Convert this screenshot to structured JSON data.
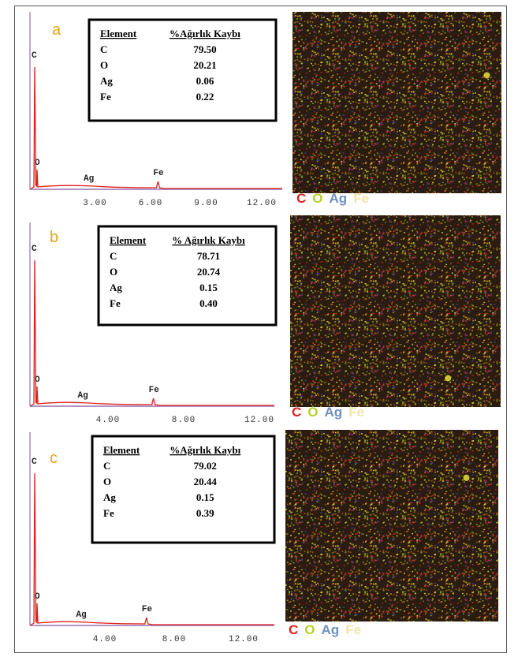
{
  "panels": [
    {
      "label": "a",
      "table": {
        "header": [
          "Element",
          "%Ağırlık Kaybı"
        ],
        "rows": [
          [
            "C",
            "79.50"
          ],
          [
            "O",
            "20.21"
          ],
          [
            "Ag",
            "0.06"
          ],
          [
            "Fe",
            "0.22"
          ]
        ]
      },
      "spectrum": {
        "peak_labels": [
          "C",
          "O",
          "Ag",
          "Fe"
        ],
        "xticks": [
          "3.00",
          "6.00",
          "9.00",
          "12.00"
        ]
      },
      "map_legend": [
        "C",
        "O",
        "Ag",
        "Fe"
      ]
    },
    {
      "label": "b",
      "table": {
        "header": [
          "Element",
          "% Ağırlık Kaybı"
        ],
        "rows": [
          [
            "C",
            "78.71"
          ],
          [
            "O",
            "20.74"
          ],
          [
            "Ag",
            "0.15"
          ],
          [
            "Fe",
            "0.40"
          ]
        ]
      },
      "spectrum": {
        "peak_labels": [
          "C",
          "O",
          "Ag",
          "Fe"
        ],
        "xticks": [
          "4.00",
          "8.00",
          "12.00"
        ]
      },
      "map_legend": [
        "C",
        "O",
        "Ag",
        "Fe"
      ]
    },
    {
      "label": "c",
      "table": {
        "header": [
          "Element",
          "%Ağırlık Kaybı"
        ],
        "rows": [
          [
            "C",
            "79.02"
          ],
          [
            "O",
            "20.44"
          ],
          [
            "Ag",
            "0.15"
          ],
          [
            "Fe",
            "0.39"
          ]
        ]
      },
      "spectrum": {
        "peak_labels": [
          "C",
          "O",
          "Ag",
          "Fe"
        ],
        "xticks": [
          "4.00",
          "8.00",
          "12.00"
        ]
      },
      "map_legend": [
        "C",
        "O",
        "Ag",
        "Fe"
      ]
    }
  ]
}
